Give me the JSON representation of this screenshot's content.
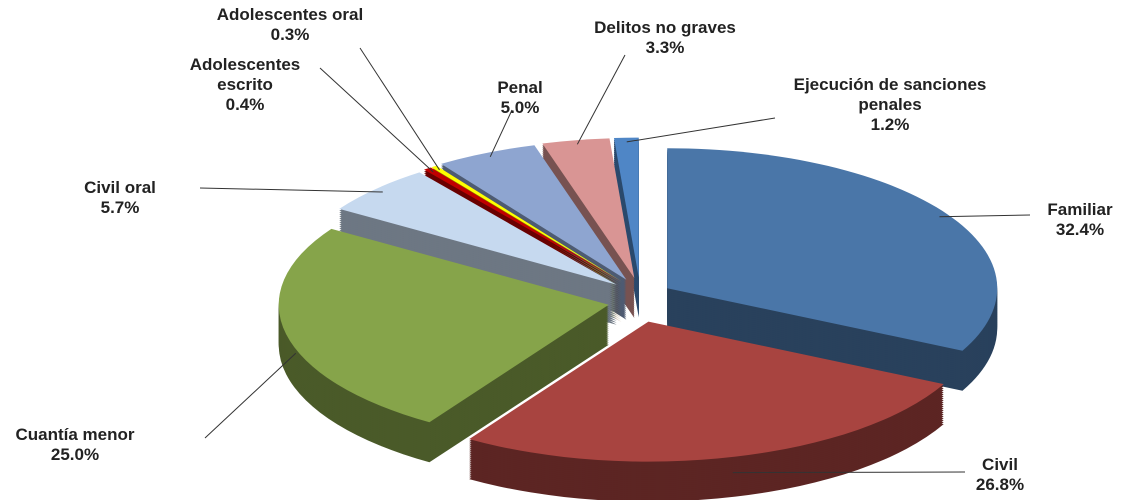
{
  "chart_data": {
    "type": "pie3d",
    "categories": [
      "Familiar",
      "Civil",
      "Cuantía menor",
      "Civil oral",
      "Adolescentes escrito",
      "Adolescentes oral",
      "Penal",
      "Delitos no graves",
      "Ejecución de sanciones penales"
    ],
    "values": [
      32.4,
      26.8,
      25.0,
      5.7,
      0.4,
      0.3,
      5.0,
      3.3,
      1.2
    ],
    "value_labels": [
      "32.4%",
      "26.8%",
      "25.0%",
      "5.7%",
      "0.4%",
      "0.3%",
      "5.0%",
      "3.3%",
      "1.2%"
    ],
    "colors": [
      "#4a76a8",
      "#a84440",
      "#86a44a",
      "#c6d9ef",
      "#c00000",
      "#ffff00",
      "#8ea5d0",
      "#d99594",
      "#4f86c6"
    ]
  }
}
